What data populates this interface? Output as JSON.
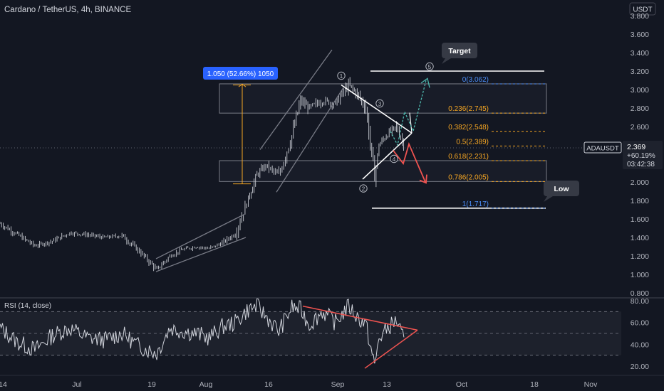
{
  "header": {
    "symbol_title": "Cardano / TetherUS, 4h, BINANCE",
    "currency_badge": "USDT"
  },
  "colors": {
    "background": "#131722",
    "candle": "#c9ccd3",
    "fib_blue": "#4c8ef7",
    "fib_orange": "#f5a623",
    "measure_orange": "#f5a623",
    "projection_green": "#4db6ac",
    "projection_red": "#ef5350",
    "rsi_line": "#d1d4dc",
    "rsi_trendline": "#ef5350"
  },
  "chart_data": [
    {
      "type": "line",
      "title": "Cardano / TetherUS, 4h, BINANCE",
      "ylim": [
        0.75,
        3.9
      ],
      "y_ticks": [
        "3.800",
        "3.600",
        "3.400",
        "3.200",
        "3.000",
        "2.800",
        "2.600",
        "2.400",
        "2.200",
        "2.000",
        "1.800",
        "1.600",
        "1.400",
        "1.200",
        "1.000",
        "0.800"
      ],
      "x_ticks": [
        "14",
        "Jul",
        "19",
        "Aug",
        "16",
        "Sep",
        "13",
        "Oct",
        "18",
        "Nov"
      ],
      "x": [
        "2021-06-14",
        "2021-06-18",
        "2021-06-22",
        "2021-06-26",
        "2021-06-30",
        "2021-07-04",
        "2021-07-08",
        "2021-07-12",
        "2021-07-16",
        "2021-07-20",
        "2021-07-23",
        "2021-07-26",
        "2021-07-29",
        "2021-08-01",
        "2021-08-04",
        "2021-08-07",
        "2021-08-10",
        "2021-08-12",
        "2021-08-14",
        "2021-08-17",
        "2021-08-20",
        "2021-08-22",
        "2021-08-24",
        "2021-08-27",
        "2021-08-30",
        "2021-09-02",
        "2021-09-04",
        "2021-09-06",
        "2021-09-08",
        "2021-09-09",
        "2021-09-11",
        "2021-09-13",
        "2021-09-15"
      ],
      "series": [
        {
          "values": [
            1.55,
            1.43,
            1.31,
            1.36,
            1.45,
            1.43,
            1.4,
            1.42,
            1.25,
            1.05,
            1.2,
            1.27,
            1.3,
            1.28,
            1.34,
            1.44,
            1.82,
            2.08,
            2.18,
            2.07,
            2.5,
            2.88,
            2.8,
            2.88,
            2.85,
            3.05,
            2.95,
            2.8,
            2.05,
            2.4,
            2.52,
            2.6,
            2.37
          ]
        }
      ],
      "last_price": {
        "symbol": "ADAUSDT",
        "value": "2.369",
        "change": "+60.19%",
        "countdown": "03:42:38"
      },
      "measure": {
        "label": "1.050 (52.66%) 1050",
        "from": 2.0,
        "to": 3.05
      },
      "fibonacci": [
        {
          "label": "0(3.062)",
          "value": 3.062,
          "color": "blue"
        },
        {
          "label": "0.236(2.745)",
          "value": 2.745,
          "color": "orange"
        },
        {
          "label": "0.382(2.548)",
          "value": 2.548,
          "color": "orange"
        },
        {
          "label": "0.5(2.389)",
          "value": 2.389,
          "color": "orange"
        },
        {
          "label": "0.618(2.231)",
          "value": 2.231,
          "color": "orange"
        },
        {
          "label": "0.786(2.005)",
          "value": 2.005,
          "color": "orange"
        },
        {
          "label": "1(1.717)",
          "value": 1.717,
          "color": "blue"
        }
      ],
      "zones": [
        {
          "from": 2.745,
          "to": 3.062
        },
        {
          "from": 2.005,
          "to": 2.231
        }
      ],
      "callouts": [
        {
          "text": "Target",
          "value": 3.2
        },
        {
          "text": "Low",
          "value": 1.717
        }
      ],
      "wave_labels": [
        "1",
        "2",
        "3",
        "4",
        "5"
      ],
      "grid": false
    },
    {
      "type": "line",
      "title": "RSI (14, close)",
      "ylim": [
        15,
        85
      ],
      "y_ticks": [
        "80.00",
        "60.00",
        "40.00",
        "20.00"
      ],
      "bands": [
        30,
        50,
        70
      ],
      "x": [
        "2021-06-14",
        "2021-06-18",
        "2021-06-22",
        "2021-06-26",
        "2021-06-30",
        "2021-07-04",
        "2021-07-08",
        "2021-07-12",
        "2021-07-16",
        "2021-07-20",
        "2021-07-23",
        "2021-07-26",
        "2021-07-29",
        "2021-08-01",
        "2021-08-04",
        "2021-08-07",
        "2021-08-10",
        "2021-08-12",
        "2021-08-14",
        "2021-08-17",
        "2021-08-20",
        "2021-08-22",
        "2021-08-24",
        "2021-08-27",
        "2021-08-30",
        "2021-09-02",
        "2021-09-04",
        "2021-09-06",
        "2021-09-08",
        "2021-09-09",
        "2021-09-11",
        "2021-09-13",
        "2021-09-15"
      ],
      "series": [
        {
          "values": [
            55,
            42,
            35,
            48,
            55,
            46,
            44,
            50,
            38,
            32,
            55,
            52,
            50,
            46,
            56,
            60,
            72,
            75,
            66,
            52,
            74,
            72,
            58,
            70,
            60,
            75,
            65,
            58,
            20,
            45,
            55,
            62,
            40
          ]
        }
      ]
    }
  ]
}
